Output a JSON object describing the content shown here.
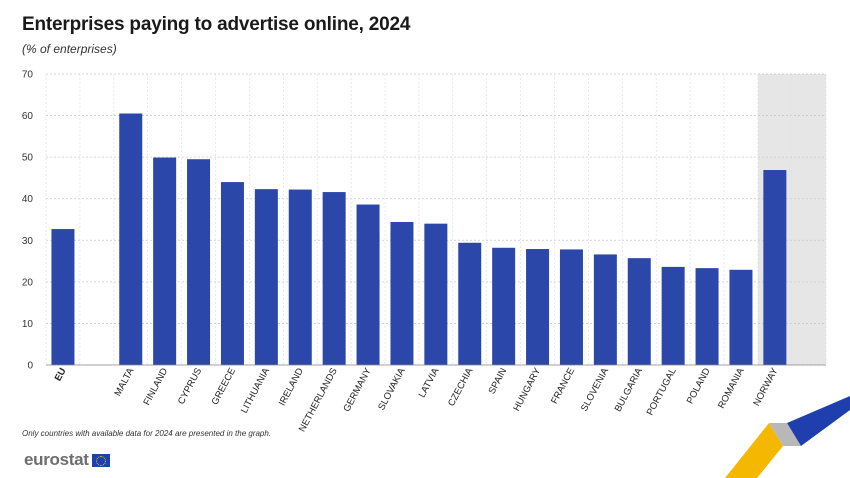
{
  "header": {
    "title": "Enterprises paying to advertise online, 2024",
    "subtitle": "(% of enterprises)"
  },
  "footer": {
    "note": "Only countries with available data for 2024 are presented in the graph.",
    "logo_text": "eurostat"
  },
  "colors": {
    "bar": "#2b47a9",
    "highlight_band": "#e6e6e6",
    "accent_yellow": "#f5b800",
    "accent_blue": "#1f3fae",
    "accent_grey": "#b0b0b0"
  },
  "chart_data": {
    "type": "bar",
    "title": "Enterprises paying to advertise online, 2024",
    "subtitle": "(% of enterprises)",
    "ylim": [
      0,
      70
    ],
    "yticks": [
      0,
      10,
      20,
      30,
      40,
      50,
      60,
      70
    ],
    "grid": true,
    "categories": [
      "EU",
      "Malta",
      "Finland",
      "Cyprus",
      "Greece",
      "Lithuania",
      "Ireland",
      "Netherlands",
      "Germany",
      "Slovakia",
      "Latvia",
      "Czechia",
      "Spain",
      "Hungary",
      "France",
      "Slovenia",
      "Bulgaria",
      "Portugal",
      "Poland",
      "Romania",
      "Norway"
    ],
    "values": [
      32.7,
      60.5,
      49.9,
      49.5,
      44.0,
      42.3,
      42.2,
      41.6,
      38.6,
      34.4,
      34.0,
      29.4,
      28.2,
      27.9,
      27.8,
      26.6,
      25.7,
      23.6,
      23.3,
      22.9,
      46.9
    ]
  }
}
